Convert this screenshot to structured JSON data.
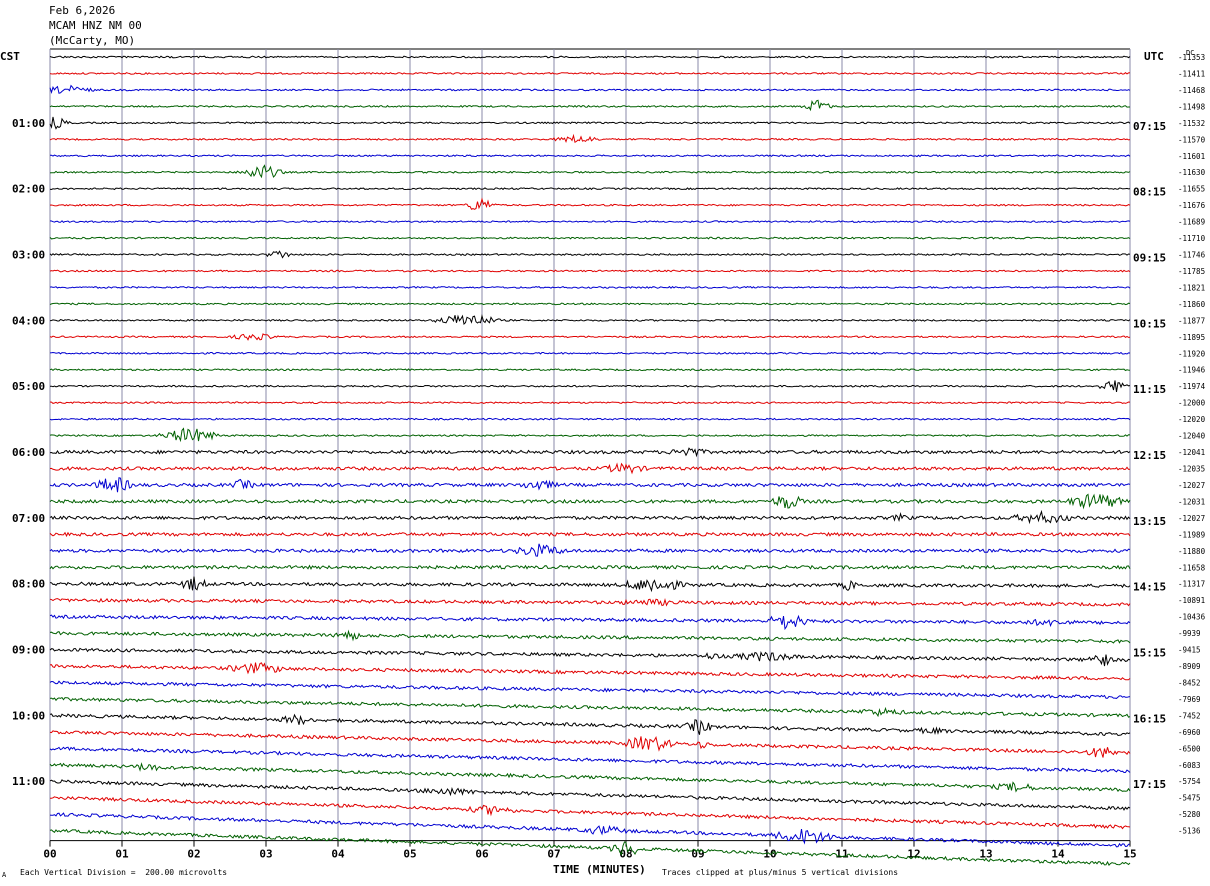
{
  "header": {
    "date": "Feb 6,2026",
    "station": "MCAM HNZ NM 00",
    "location": "(McCarty, MO)"
  },
  "left_timezone": "CST",
  "right_timezone": "UTC",
  "dc_label": "DC",
  "footer": {
    "scale_note": "Each Vertical Division =  200.00 microvolts",
    "clip_note": "Traces clipped at plus/minus 5 vertical divisions",
    "corner_mark": "A"
  },
  "colors": {
    "cycle": [
      "#000000",
      "#e00000",
      "#0000d0",
      "#006000"
    ],
    "grid": "#8a8aa8"
  },
  "chart_data": {
    "type": "line",
    "title": "",
    "xlabel": "TIME (MINUTES)",
    "ylabel": "",
    "xlim": [
      0,
      15
    ],
    "x_ticks": [
      "00",
      "01",
      "02",
      "03",
      "04",
      "05",
      "06",
      "07",
      "08",
      "09",
      "10",
      "11",
      "12",
      "13",
      "14",
      "15"
    ],
    "left_time_labels": [
      "01:00",
      "02:00",
      "03:00",
      "04:00",
      "05:00",
      "06:00",
      "07:00",
      "08:00",
      "09:00",
      "10:00",
      "11:00"
    ],
    "right_time_labels": [
      "07:15",
      "08:15",
      "09:15",
      "10:15",
      "11:15",
      "12:15",
      "13:15",
      "14:15",
      "15:15",
      "16:15",
      "17:15"
    ],
    "dc_offsets": [
      "-11353",
      "-11411",
      "-11468",
      "-11498",
      "-11532",
      "-11570",
      "-11601",
      "-11630",
      "-11655",
      "-11676",
      "-11689",
      "-11710",
      "-11746",
      "-11785",
      "-11821",
      "-11860",
      "-11877",
      "-11895",
      "-11920",
      "-11946",
      "-11974",
      "-12000",
      "-12020",
      "-12040",
      "-12041",
      "-12035",
      "-12027",
      "-12031",
      "-12027",
      "-11989",
      "-11880",
      "-11658",
      "-11317",
      "-10891",
      "-10436",
      "-9939",
      "-9415",
      "-8909",
      "-8452",
      "-7969",
      "-7452",
      "-6960",
      "-6500",
      "-6083",
      "-5754",
      "-5475",
      "-5280",
      "-5136"
    ],
    "trace_count": 48,
    "row_minutes": 15,
    "grid": true
  }
}
